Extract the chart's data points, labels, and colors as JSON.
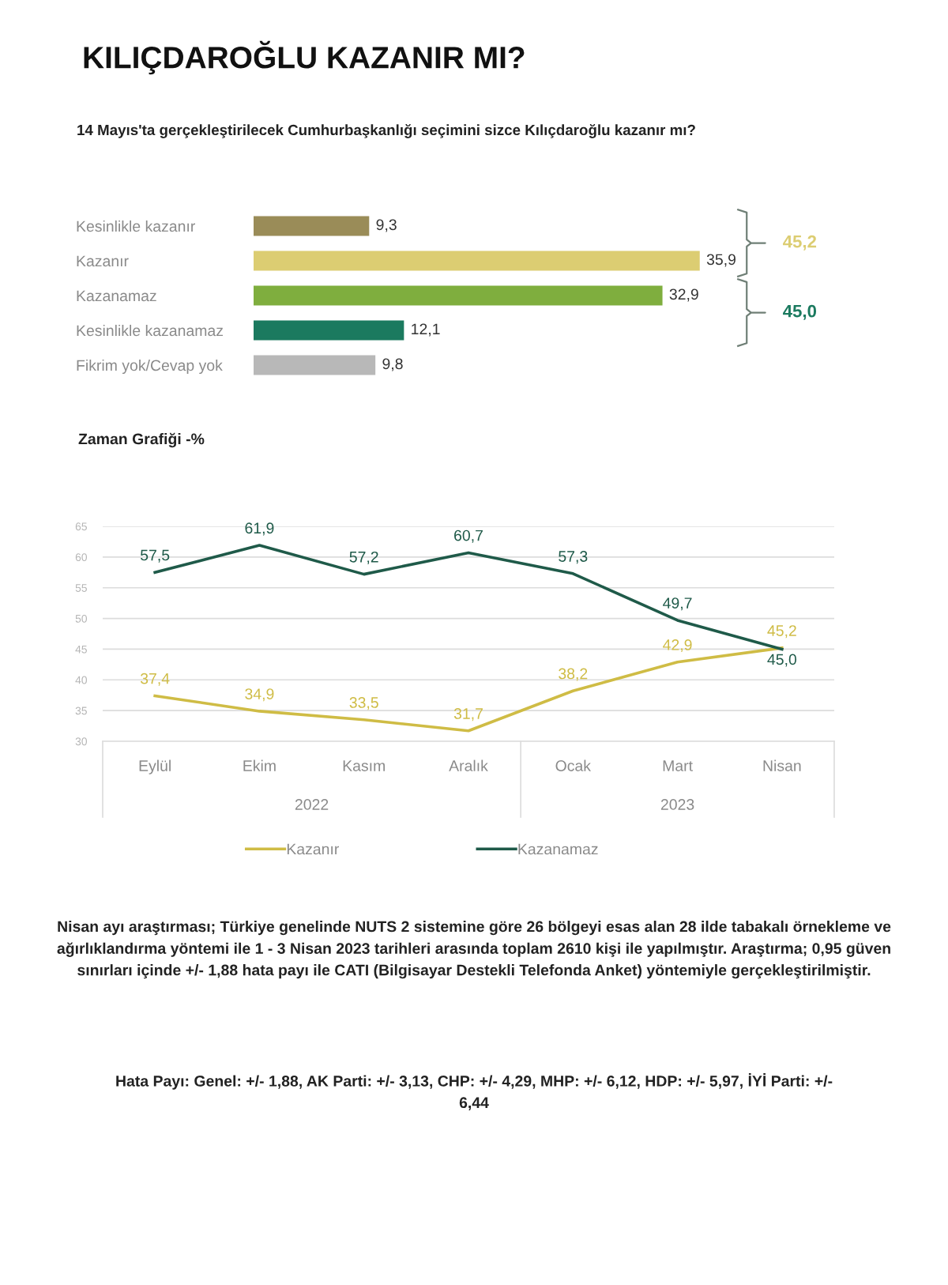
{
  "chart_data": [
    {
      "type": "bar",
      "orientation": "horizontal",
      "title": "KILIÇDAROĞLU KAZANIR MI?",
      "subtitle": "14 Mayıs'ta gerçekleştirilecek Cumhurbaşkanlığı seçimini sizce Kılıçdaroğlu kazanır mı?",
      "categories": [
        "Kesinlikle kazanır",
        "Kazanır",
        "Kazanamaz",
        "Kesinlikle kazanamaz",
        "Fikrim yok/Cevap yok"
      ],
      "values": [
        9.3,
        35.9,
        32.9,
        12.1,
        9.8
      ],
      "colors": [
        "#9a8c58",
        "#dccd72",
        "#7fae3e",
        "#1b7a5f",
        "#b8b8b8"
      ],
      "value_labels": [
        "9,3",
        "35,9",
        "32,9",
        "12,1",
        "9,8"
      ],
      "annotations": [
        "45,2",
        "45,0"
      ],
      "tick_labels": "y"
    },
    {
      "type": "line",
      "title": "Zaman Grafiği -%",
      "categories": [
        "Eylül",
        "Ekim",
        "Kasım",
        "Aralık",
        "Ocak",
        "Mart",
        "Nisan"
      ],
      "series": [
        {
          "name": "Kazanır",
          "color": "#cfbc45",
          "values": [
            37.4,
            34.9,
            33.5,
            31.7,
            38.2,
            42.9,
            45.2
          ],
          "value_labels": [
            "37,4",
            "34,9",
            "33,5",
            "31,7",
            "38,2",
            "42,9",
            "45,2"
          ]
        },
        {
          "name": "Kazanamaz",
          "color": "#1f5a49",
          "values": [
            57.5,
            61.9,
            57.2,
            60.7,
            57.3,
            49.7,
            45.0
          ],
          "value_labels": [
            "57,5",
            "61,9",
            "57,2",
            "60,7",
            "57,3",
            "49,7",
            "45,0"
          ]
        }
      ],
      "ylim": [
        30,
        65
      ],
      "yticks": [
        30,
        35,
        40,
        45,
        50,
        55,
        60,
        65
      ],
      "grid": "y",
      "legend": "bottom",
      "annotations": [
        "2022",
        "2023",
        "Nisan ayı araştırması; Türkiye genelinde NUTS 2 sistemine göre 26 bölgeyi esas alan 28 ilde tabakalı örnekleme ve ağırlıklandırma yöntemi ile 1 - 3 Nisan 2023 tarihleri arasında toplam 2610 kişi ile yapılmıştır. Araştırma; 0,95 güven sınırları içinde +/- 1,88 hata payı ile CATI (Bilgisayar Destekli Telefonda Anket) yöntemiyle gerçekleştirilmiştir.",
        "Hata Payı: Genel: +/- 1,88, AK Parti: +/- 3,13, CHP: +/- 4,29, MHP: +/- 6,12, HDP: +/- 5,97, İYİ Parti: +/- 6,44"
      ]
    }
  ]
}
